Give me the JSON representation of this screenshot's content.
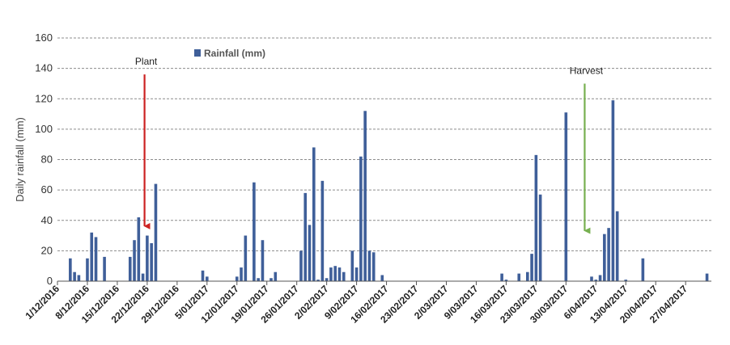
{
  "chart_data": {
    "type": "bar",
    "ylabel": "Daily rainfall (mm)",
    "ylim": [
      0,
      160
    ],
    "yticks": [
      0,
      20,
      40,
      60,
      80,
      100,
      120,
      140,
      160
    ],
    "grid": true,
    "x_start": "2016-12-01",
    "x_end": "2017-05-04",
    "xtick_labels": [
      "1/12/2016",
      "8/12/2016",
      "15/12/2016",
      "22/12/2016",
      "29/12/2016",
      "5/01/2017",
      "12/01/2017",
      "19/01/2017",
      "26/01/2017",
      "2/02/2017",
      "9/02/2017",
      "16/02/2017",
      "23/02/2017",
      "2/03/2017",
      "9/03/2017",
      "16/03/2017",
      "23/03/2017",
      "30/03/2017",
      "6/04/2017",
      "13/04/2017",
      "20/04/2017",
      "27/04/2017"
    ],
    "series": [
      {
        "name": "Rainfall (mm)",
        "color": "#3F5F99",
        "points": [
          [
            "2016-12-04",
            15
          ],
          [
            "2016-12-05",
            6
          ],
          [
            "2016-12-06",
            4
          ],
          [
            "2016-12-08",
            15
          ],
          [
            "2016-12-09",
            32
          ],
          [
            "2016-12-10",
            29
          ],
          [
            "2016-12-12",
            16
          ],
          [
            "2016-12-18",
            16
          ],
          [
            "2016-12-19",
            27
          ],
          [
            "2016-12-20",
            42
          ],
          [
            "2016-12-21",
            5
          ],
          [
            "2016-12-22",
            30
          ],
          [
            "2016-12-23",
            25
          ],
          [
            "2016-12-24",
            64
          ],
          [
            "2017-01-04",
            7
          ],
          [
            "2017-01-05",
            3
          ],
          [
            "2017-01-12",
            3
          ],
          [
            "2017-01-13",
            9
          ],
          [
            "2017-01-14",
            30
          ],
          [
            "2017-01-16",
            65
          ],
          [
            "2017-01-17",
            2
          ],
          [
            "2017-01-18",
            27
          ],
          [
            "2017-01-20",
            2
          ],
          [
            "2017-01-21",
            6
          ],
          [
            "2017-01-27",
            20
          ],
          [
            "2017-01-28",
            58
          ],
          [
            "2017-01-29",
            37
          ],
          [
            "2017-01-30",
            88
          ],
          [
            "2017-01-31",
            1
          ],
          [
            "2017-02-01",
            66
          ],
          [
            "2017-02-02",
            2
          ],
          [
            "2017-02-03",
            9
          ],
          [
            "2017-02-04",
            10
          ],
          [
            "2017-02-05",
            9
          ],
          [
            "2017-02-06",
            6
          ],
          [
            "2017-02-08",
            20
          ],
          [
            "2017-02-09",
            9
          ],
          [
            "2017-02-10",
            82
          ],
          [
            "2017-02-11",
            112
          ],
          [
            "2017-02-12",
            20
          ],
          [
            "2017-02-13",
            19
          ],
          [
            "2017-02-15",
            4
          ],
          [
            "2017-03-15",
            5
          ],
          [
            "2017-03-16",
            1
          ],
          [
            "2017-03-19",
            5
          ],
          [
            "2017-03-21",
            6
          ],
          [
            "2017-03-22",
            18
          ],
          [
            "2017-03-23",
            83
          ],
          [
            "2017-03-24",
            57
          ],
          [
            "2017-03-30",
            111
          ],
          [
            "2017-04-05",
            3
          ],
          [
            "2017-04-06",
            1
          ],
          [
            "2017-04-07",
            4
          ],
          [
            "2017-04-08",
            31
          ],
          [
            "2017-04-09",
            35
          ],
          [
            "2017-04-10",
            119
          ],
          [
            "2017-04-11",
            46
          ],
          [
            "2017-04-13",
            1
          ],
          [
            "2017-04-17",
            15
          ],
          [
            "2017-05-02",
            5
          ]
        ]
      }
    ],
    "legend": {
      "position": "top-left",
      "label": "Rainfall (mm)"
    },
    "annotations": [
      {
        "label": "Plant",
        "date": "2016-12-21",
        "color": "#CC2222",
        "arrow_top": 136,
        "arrow_tip": 33
      },
      {
        "label": "Harvest",
        "date": "2017-04-03",
        "color": "#77B050",
        "arrow_top": 130,
        "arrow_tip": 30
      }
    ]
  }
}
